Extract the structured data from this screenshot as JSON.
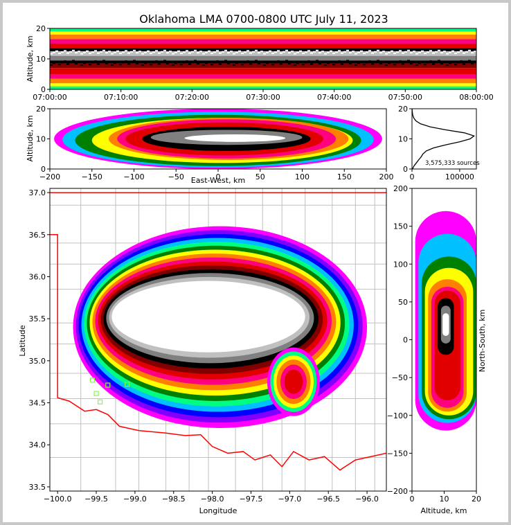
{
  "title": "Oklahoma LMA 0700-0800 UTC July 11, 2023",
  "colors": {
    "density_scale": [
      "#ff00ff",
      "#8000ff",
      "#0000ff",
      "#00c0ff",
      "#00ff80",
      "#008000",
      "#ffff00",
      "#ff8000",
      "#ff0080",
      "#e00000",
      "#800000",
      "#000000",
      "#808080",
      "#c0c0c0",
      "#ffffff"
    ],
    "boundary_red": "#ff0000",
    "map_lines": "#c0c0c0",
    "station_marker": "#80ff40",
    "histogram_line": "#000000"
  },
  "chart_data": [
    {
      "id": "time-height",
      "type": "heatmap",
      "xlabel": "",
      "ylabel": "Altitude, km",
      "x_ticks": [
        "07:00:00",
        "07:10:00",
        "07:20:00",
        "07:30:00",
        "07:40:00",
        "07:50:00",
        "08:00:00"
      ],
      "y_ticks": [
        0,
        10,
        20
      ],
      "ylim": [
        0,
        20
      ],
      "layers": [
        {
          "alt": [
            0,
            1
          ],
          "color": "#00ff80"
        },
        {
          "alt": [
            1,
            2
          ],
          "color": "#ffff00"
        },
        {
          "alt": [
            2,
            3.5
          ],
          "color": "#ff8000"
        },
        {
          "alt": [
            3.5,
            5
          ],
          "color": "#ff0080"
        },
        {
          "alt": [
            5,
            7
          ],
          "color": "#e00000"
        },
        {
          "alt": [
            7,
            8.5
          ],
          "color": "#800000"
        },
        {
          "alt": [
            8.5,
            9.5
          ],
          "color": "#000000"
        },
        {
          "alt": [
            9.5,
            11
          ],
          "color": "#808080"
        },
        {
          "alt": [
            11,
            12.5
          ],
          "color": "#c0c0c0"
        },
        {
          "alt": [
            12.5,
            13.5
          ],
          "color": "#000000"
        },
        {
          "alt": [
            13.5,
            15
          ],
          "color": "#e00000"
        },
        {
          "alt": [
            15,
            16.5
          ],
          "color": "#ff0080"
        },
        {
          "alt": [
            16.5,
            18
          ],
          "color": "#ff8000"
        },
        {
          "alt": [
            18,
            19
          ],
          "color": "#ffff00"
        },
        {
          "alt": [
            19,
            20
          ],
          "color": "#00ff80"
        }
      ]
    },
    {
      "id": "east-west-height",
      "type": "heatmap",
      "xlabel": "East-West, km",
      "ylabel": "Altitude, km",
      "x_ticks": [
        -200,
        -150,
        -100,
        -50,
        0,
        50,
        100,
        150,
        200
      ],
      "y_ticks": [
        0,
        10,
        20
      ],
      "xlim": [
        -200,
        200
      ],
      "ylim": [
        0,
        20
      ],
      "contours": [
        {
          "x": [
            -195,
            195
          ],
          "alt": [
            0,
            20
          ],
          "color": "#ff00ff"
        },
        {
          "x": [
            -185,
            185
          ],
          "alt": [
            0.5,
            19
          ],
          "color": "#00c0ff"
        },
        {
          "x": [
            -170,
            170
          ],
          "alt": [
            1,
            18
          ],
          "color": "#008000"
        },
        {
          "x": [
            -150,
            160
          ],
          "alt": [
            2,
            17
          ],
          "color": "#ffff00"
        },
        {
          "x": [
            -130,
            155
          ],
          "alt": [
            3,
            17
          ],
          "color": "#ff8000"
        },
        {
          "x": [
            -120,
            140
          ],
          "alt": [
            3.5,
            16.5
          ],
          "color": "#ff0080"
        },
        {
          "x": [
            -110,
            125
          ],
          "alt": [
            4.5,
            15.5
          ],
          "color": "#e00000"
        },
        {
          "x": [
            -90,
            110
          ],
          "alt": [
            6,
            14
          ],
          "color": "#000000"
        },
        {
          "x": [
            -80,
            100
          ],
          "alt": [
            8,
            13
          ],
          "color": "#808080"
        },
        {
          "x": [
            -40,
            80
          ],
          "alt": [
            9,
            11.5
          ],
          "color": "#ffffff"
        }
      ]
    },
    {
      "id": "altitude-histogram",
      "type": "line",
      "xlabel": "",
      "ylabel": "",
      "x_ticks": [
        0,
        100000
      ],
      "y_ticks": [
        0,
        10,
        20
      ],
      "xlim": [
        0,
        135000
      ],
      "ylim": [
        0,
        20
      ],
      "annotation": "3,575,333 sources",
      "alt": [
        0,
        1,
        2,
        3,
        4,
        5,
        6,
        7,
        8,
        9,
        10,
        11,
        12,
        13,
        14,
        15,
        16,
        17,
        18,
        19,
        20
      ],
      "counts": [
        1000,
        4000,
        9000,
        14000,
        19000,
        23000,
        30000,
        45000,
        70000,
        100000,
        122000,
        130000,
        110000,
        70000,
        38000,
        18000,
        8000,
        3500,
        1500,
        600,
        200
      ]
    },
    {
      "id": "plan-view",
      "type": "heatmap",
      "xlabel": "Longitude",
      "ylabel": "Latitude",
      "x_ticks": [
        -100.0,
        -99.5,
        -99.0,
        -98.5,
        -98.0,
        -97.5,
        -97.0,
        -96.5,
        -96.0
      ],
      "y_ticks": [
        33.5,
        34.0,
        34.5,
        35.0,
        35.5,
        36.0,
        36.5,
        37.0
      ],
      "xlim": [
        -100.1,
        -95.75
      ],
      "ylim": [
        33.45,
        37.05
      ],
      "x_tick_labels": [
        "−100.0",
        "−99.5",
        "−99.0",
        "−98.5",
        "−98.0",
        "−97.5",
        "−97.0",
        "−96.5",
        "−96.0"
      ],
      "y_tick_labels": [
        "33.5",
        "34.0",
        "34.5",
        "35.0",
        "35.5",
        "36.0",
        "36.5",
        "37.0"
      ],
      "stations": [
        {
          "lon": -99.55,
          "lat": 34.77
        },
        {
          "lon": -99.5,
          "lat": 34.61
        },
        {
          "lon": -99.45,
          "lat": 34.51
        },
        {
          "lon": -99.35,
          "lat": 34.71
        },
        {
          "lon": -99.1,
          "lat": 34.72
        }
      ],
      "storm_core": {
        "lon": [
          -99.3,
          -96.8
        ],
        "lat": [
          35.1,
          35.95
        ]
      },
      "storm_extent": {
        "lon": [
          -99.8,
          -96.0
        ],
        "lat": [
          34.2,
          36.6
        ]
      }
    },
    {
      "id": "height-north-south",
      "type": "heatmap",
      "xlabel": "Altitude, km",
      "ylabel": "North-South, km",
      "x_ticks": [
        0,
        10,
        20
      ],
      "y_ticks": [
        -200,
        -150,
        -100,
        -50,
        0,
        50,
        100,
        150,
        200
      ],
      "xlim": [
        0,
        20
      ],
      "ylim": [
        -200,
        200
      ],
      "contours": [
        {
          "alt": [
            1,
            20
          ],
          "ns": [
            -120,
            170
          ],
          "color": "#ff00ff"
        },
        {
          "alt": [
            2,
            20
          ],
          "ns": [
            -110,
            140
          ],
          "color": "#00c0ff"
        },
        {
          "alt": [
            3,
            20
          ],
          "ns": [
            -105,
            110
          ],
          "color": "#008000"
        },
        {
          "alt": [
            4,
            19
          ],
          "ns": [
            -100,
            95
          ],
          "color": "#ffff00"
        },
        {
          "alt": [
            5,
            17
          ],
          "ns": [
            -95,
            80
          ],
          "color": "#ff8000"
        },
        {
          "alt": [
            6,
            16
          ],
          "ns": [
            -90,
            70
          ],
          "color": "#ff0080"
        },
        {
          "alt": [
            7,
            15
          ],
          "ns": [
            -80,
            65
          ],
          "color": "#e00000"
        },
        {
          "alt": [
            8,
            13
          ],
          "ns": [
            -20,
            55
          ],
          "color": "#000000"
        },
        {
          "alt": [
            9,
            12
          ],
          "ns": [
            -5,
            45
          ],
          "color": "#808080"
        },
        {
          "alt": [
            9.5,
            11.5
          ],
          "ns": [
            5,
            35
          ],
          "color": "#ffffff"
        }
      ]
    }
  ]
}
